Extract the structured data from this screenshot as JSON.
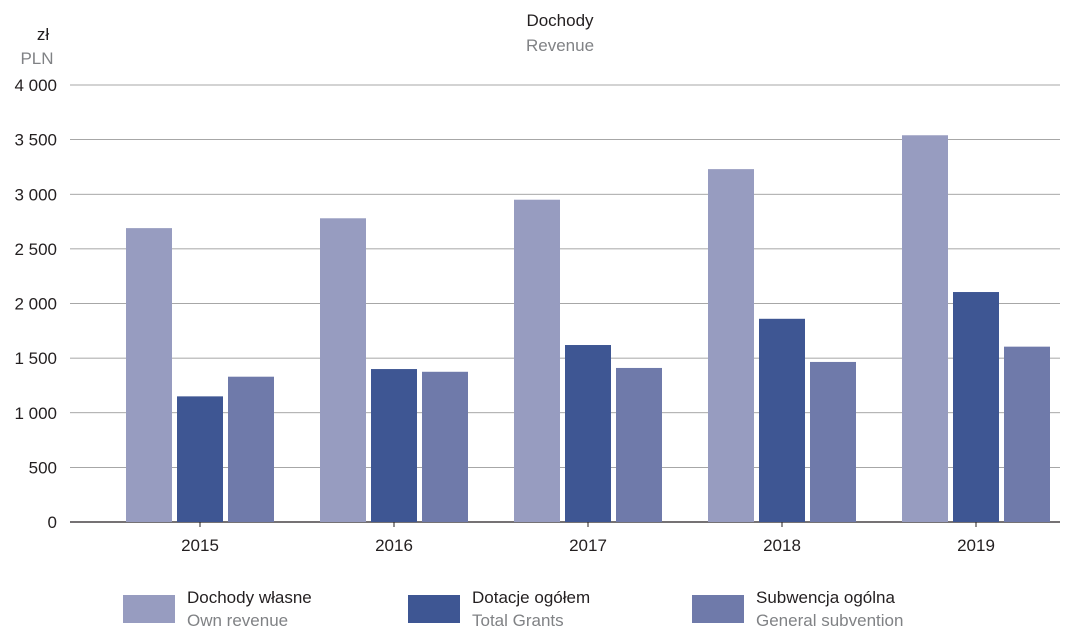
{
  "chart_data": {
    "type": "bar",
    "title": "Dochody",
    "subtitle": "Revenue",
    "ylabel": "zł",
    "ylabel_sub": "PLN",
    "xlabel": "",
    "ylim": [
      0,
      4000
    ],
    "yticks": [
      0,
      500,
      1000,
      1500,
      2000,
      2500,
      3000,
      3500,
      4000
    ],
    "ytick_labels": [
      "0",
      "500",
      "1 000",
      "1 500",
      "2 000",
      "2 500",
      "3 000",
      "3 500",
      "4 000"
    ],
    "categories": [
      "2015",
      "2016",
      "2017",
      "2018",
      "2019"
    ],
    "grid": true,
    "legend_position": "bottom",
    "series": [
      {
        "name": "Dochody własne",
        "name_sub": "Own revenue",
        "color": "#979cc0",
        "values": [
          2690,
          2780,
          2950,
          3230,
          3540
        ]
      },
      {
        "name": "Dotacje ogółem",
        "name_sub": "Total Grants",
        "color": "#3e5693",
        "values": [
          1150,
          1400,
          1620,
          1860,
          2105
        ]
      },
      {
        "name": "Subwencja ogólna",
        "name_sub": "General subvention",
        "color": "#6f7aaa",
        "values": [
          1330,
          1375,
          1410,
          1465,
          1605
        ]
      }
    ]
  }
}
